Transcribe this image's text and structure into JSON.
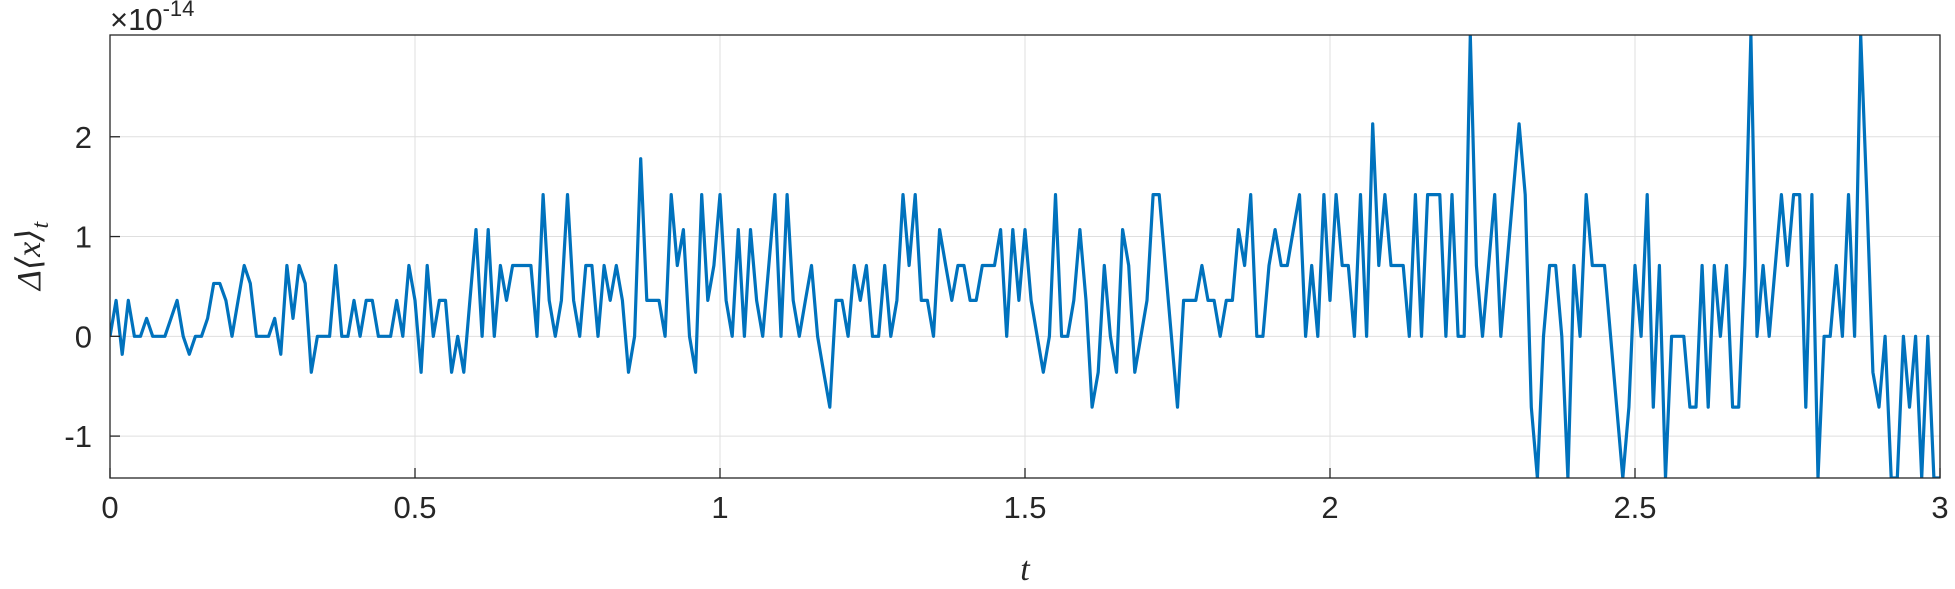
{
  "chart_data": {
    "type": "line",
    "xlabel": "t",
    "ylabel": "Δ⟨x⟩",
    "ylabel_subscript": "t",
    "y_multiplier": "×10",
    "y_multiplier_exponent": "-14",
    "color": "#0072bd",
    "grid": true,
    "xlim": [
      0,
      3
    ],
    "xticks": [
      0,
      0.5,
      1,
      1.5,
      2,
      2.5,
      3
    ],
    "ylim": [
      -1.42,
      3.02
    ],
    "yticks": [
      -1,
      0,
      1,
      2
    ],
    "x": [
      0,
      0.01,
      0.02,
      0.03,
      0.04,
      0.05,
      0.06,
      0.07,
      0.08,
      0.09,
      0.1,
      0.11,
      0.12,
      0.13,
      0.14,
      0.15,
      0.16,
      0.17,
      0.18,
      0.19,
      0.2,
      0.21,
      0.22,
      0.23,
      0.24,
      0.25,
      0.26,
      0.27,
      0.28,
      0.29,
      0.3,
      0.31,
      0.32,
      0.33,
      0.34,
      0.35,
      0.36,
      0.37,
      0.38,
      0.39,
      0.4,
      0.41,
      0.42,
      0.43,
      0.44,
      0.45,
      0.46,
      0.47,
      0.48,
      0.49,
      0.5,
      0.51,
      0.52,
      0.53,
      0.54,
      0.55,
      0.56,
      0.57,
      0.58,
      0.59,
      0.6,
      0.61,
      0.62,
      0.63,
      0.64,
      0.65,
      0.66,
      0.67,
      0.68,
      0.69,
      0.7,
      0.71,
      0.72,
      0.73,
      0.74,
      0.75,
      0.76,
      0.77,
      0.78,
      0.79,
      0.8,
      0.81,
      0.82,
      0.83,
      0.84,
      0.85,
      0.86,
      0.87,
      0.88,
      0.89,
      0.9,
      0.91,
      0.92,
      0.93,
      0.94,
      0.95,
      0.96,
      0.97,
      0.98,
      0.99,
      1,
      1.01,
      1.02,
      1.03,
      1.04,
      1.05,
      1.06,
      1.07,
      1.08,
      1.09,
      1.1,
      1.11,
      1.12,
      1.13,
      1.14,
      1.15,
      1.16,
      1.17,
      1.18,
      1.19,
      1.2,
      1.21,
      1.22,
      1.23,
      1.24,
      1.25,
      1.26,
      1.27,
      1.28,
      1.29,
      1.3,
      1.31,
      1.32,
      1.33,
      1.34,
      1.35,
      1.36,
      1.37,
      1.38,
      1.39,
      1.4,
      1.41,
      1.42,
      1.43,
      1.44,
      1.45,
      1.46,
      1.47,
      1.48,
      1.49,
      1.5,
      1.51,
      1.52,
      1.53,
      1.54,
      1.55,
      1.56,
      1.57,
      1.58,
      1.59,
      1.6,
      1.61,
      1.62,
      1.63,
      1.64,
      1.65,
      1.66,
      1.67,
      1.68,
      1.69,
      1.7,
      1.71,
      1.72,
      1.73,
      1.74,
      1.75,
      1.76,
      1.77,
      1.78,
      1.79,
      1.8,
      1.81,
      1.82,
      1.83,
      1.84,
      1.85,
      1.86,
      1.87,
      1.88,
      1.89,
      1.9,
      1.91,
      1.92,
      1.93,
      1.94,
      1.95,
      1.96,
      1.97,
      1.98,
      1.99,
      2,
      2.01,
      2.02,
      2.03,
      2.04,
      2.05,
      2.06,
      2.07,
      2.08,
      2.09,
      2.1,
      2.11,
      2.12,
      2.13,
      2.14,
      2.15,
      2.16,
      2.17,
      2.18,
      2.19,
      2.2,
      2.21,
      2.22,
      2.23,
      2.24,
      2.25,
      2.26,
      2.27,
      2.28,
      2.29,
      2.3,
      2.31,
      2.32,
      2.33,
      2.34,
      2.35,
      2.36,
      2.37,
      2.38,
      2.39,
      2.4,
      2.41,
      2.42,
      2.43,
      2.44,
      2.45,
      2.46,
      2.47,
      2.48,
      2.49,
      2.5,
      2.51,
      2.52,
      2.53,
      2.54,
      2.55,
      2.56,
      2.57,
      2.58,
      2.59,
      2.6,
      2.61,
      2.62,
      2.63,
      2.64,
      2.65,
      2.66,
      2.67,
      2.68,
      2.69,
      2.7,
      2.71,
      2.72,
      2.73,
      2.74,
      2.75,
      2.76,
      2.77,
      2.78,
      2.79,
      2.8,
      2.81,
      2.82,
      2.83,
      2.84,
      2.85,
      2.86,
      2.87,
      2.88,
      2.89,
      2.9,
      2.91,
      2.92,
      2.93,
      2.94,
      2.95,
      2.96,
      2.97,
      2.98,
      2.99,
      3
    ],
    "values": [
      0,
      0.36,
      -0.18,
      0.36,
      0,
      0,
      0.18,
      0,
      0,
      0,
      0.18,
      0.36,
      0,
      -0.18,
      0,
      0,
      0.18,
      0.53,
      0.53,
      0.36,
      0,
      0.36,
      0.71,
      0.53,
      0,
      0,
      0,
      0.18,
      -0.18,
      0.71,
      0.18,
      0.71,
      0.53,
      -0.36,
      0,
      0,
      0,
      0.71,
      0,
      0,
      0.36,
      0,
      0.36,
      0.36,
      0,
      0,
      0,
      0.36,
      0,
      0.71,
      0.36,
      -0.36,
      0.71,
      0,
      0.36,
      0.36,
      -0.36,
      0,
      -0.36,
      0.36,
      1.07,
      0,
      1.07,
      0,
      0.71,
      0.36,
      0.71,
      0.71,
      0.71,
      0.71,
      0,
      1.42,
      0.36,
      0,
      0.36,
      1.42,
      0.36,
      0,
      0.71,
      0.71,
      0,
      0.71,
      0.36,
      0.71,
      0.36,
      -0.36,
      0,
      1.78,
      0.36,
      0.36,
      0.36,
      0,
      1.42,
      0.71,
      1.07,
      0,
      -0.36,
      1.42,
      0.36,
      0.71,
      1.42,
      0.36,
      0,
      1.07,
      0,
      1.07,
      0.36,
      0,
      0.71,
      1.42,
      0,
      1.42,
      0.36,
      0,
      0.36,
      0.71,
      0,
      -0.36,
      -0.71,
      0.36,
      0.36,
      0,
      0.71,
      0.36,
      0.71,
      0,
      0,
      0.71,
      0,
      0.36,
      1.42,
      0.71,
      1.42,
      0.36,
      0.36,
      0,
      1.07,
      0.71,
      0.36,
      0.71,
      0.71,
      0.36,
      0.36,
      0.71,
      0.71,
      0.71,
      1.07,
      0,
      1.07,
      0.36,
      1.07,
      0.36,
      0,
      -0.36,
      0,
      1.42,
      0,
      0,
      0.36,
      1.07,
      0.36,
      -0.71,
      -0.36,
      0.71,
      0,
      -0.36,
      1.07,
      0.71,
      -0.36,
      0,
      0.36,
      1.42,
      1.42,
      0.71,
      0,
      -0.71,
      0.36,
      0.36,
      0.36,
      0.71,
      0.36,
      0.36,
      0,
      0.36,
      0.36,
      1.07,
      0.71,
      1.42,
      0,
      0,
      0.71,
      1.07,
      0.71,
      0.71,
      1.07,
      1.42,
      0,
      0.71,
      0,
      1.42,
      0.36,
      1.42,
      0.71,
      0.71,
      0,
      1.42,
      0,
      2.13,
      0.71,
      1.42,
      0.71,
      0.71,
      0.71,
      0,
      1.42,
      0,
      1.42,
      1.42,
      1.42,
      0,
      1.42,
      0,
      0,
      3.02,
      0.71,
      0,
      0.71,
      1.42,
      0,
      0.71,
      1.42,
      2.13,
      1.42,
      -0.71,
      -1.42,
      0,
      0.71,
      0.71,
      0,
      -1.42,
      0.71,
      0,
      1.42,
      0.71,
      0.71,
      0.71,
      0,
      -0.71,
      -1.42,
      -0.71,
      0.71,
      0,
      1.42,
      -0.71,
      0.71,
      -1.42,
      0,
      0,
      0,
      -0.71,
      -0.71,
      0.71,
      -0.71,
      0.71,
      0,
      0.71,
      -0.71,
      -0.71,
      0.71,
      3.02,
      0,
      0.71,
      0,
      0.71,
      1.42,
      0.71,
      1.42,
      1.42,
      -0.71,
      1.42,
      -1.42,
      0,
      0,
      0.71,
      0,
      1.42,
      0,
      3.02,
      1.42,
      -0.36,
      -0.71,
      0,
      -1.42,
      -1.42,
      0,
      -0.71,
      0,
      -1.42,
      0,
      -1.42,
      -1.42
    ]
  }
}
